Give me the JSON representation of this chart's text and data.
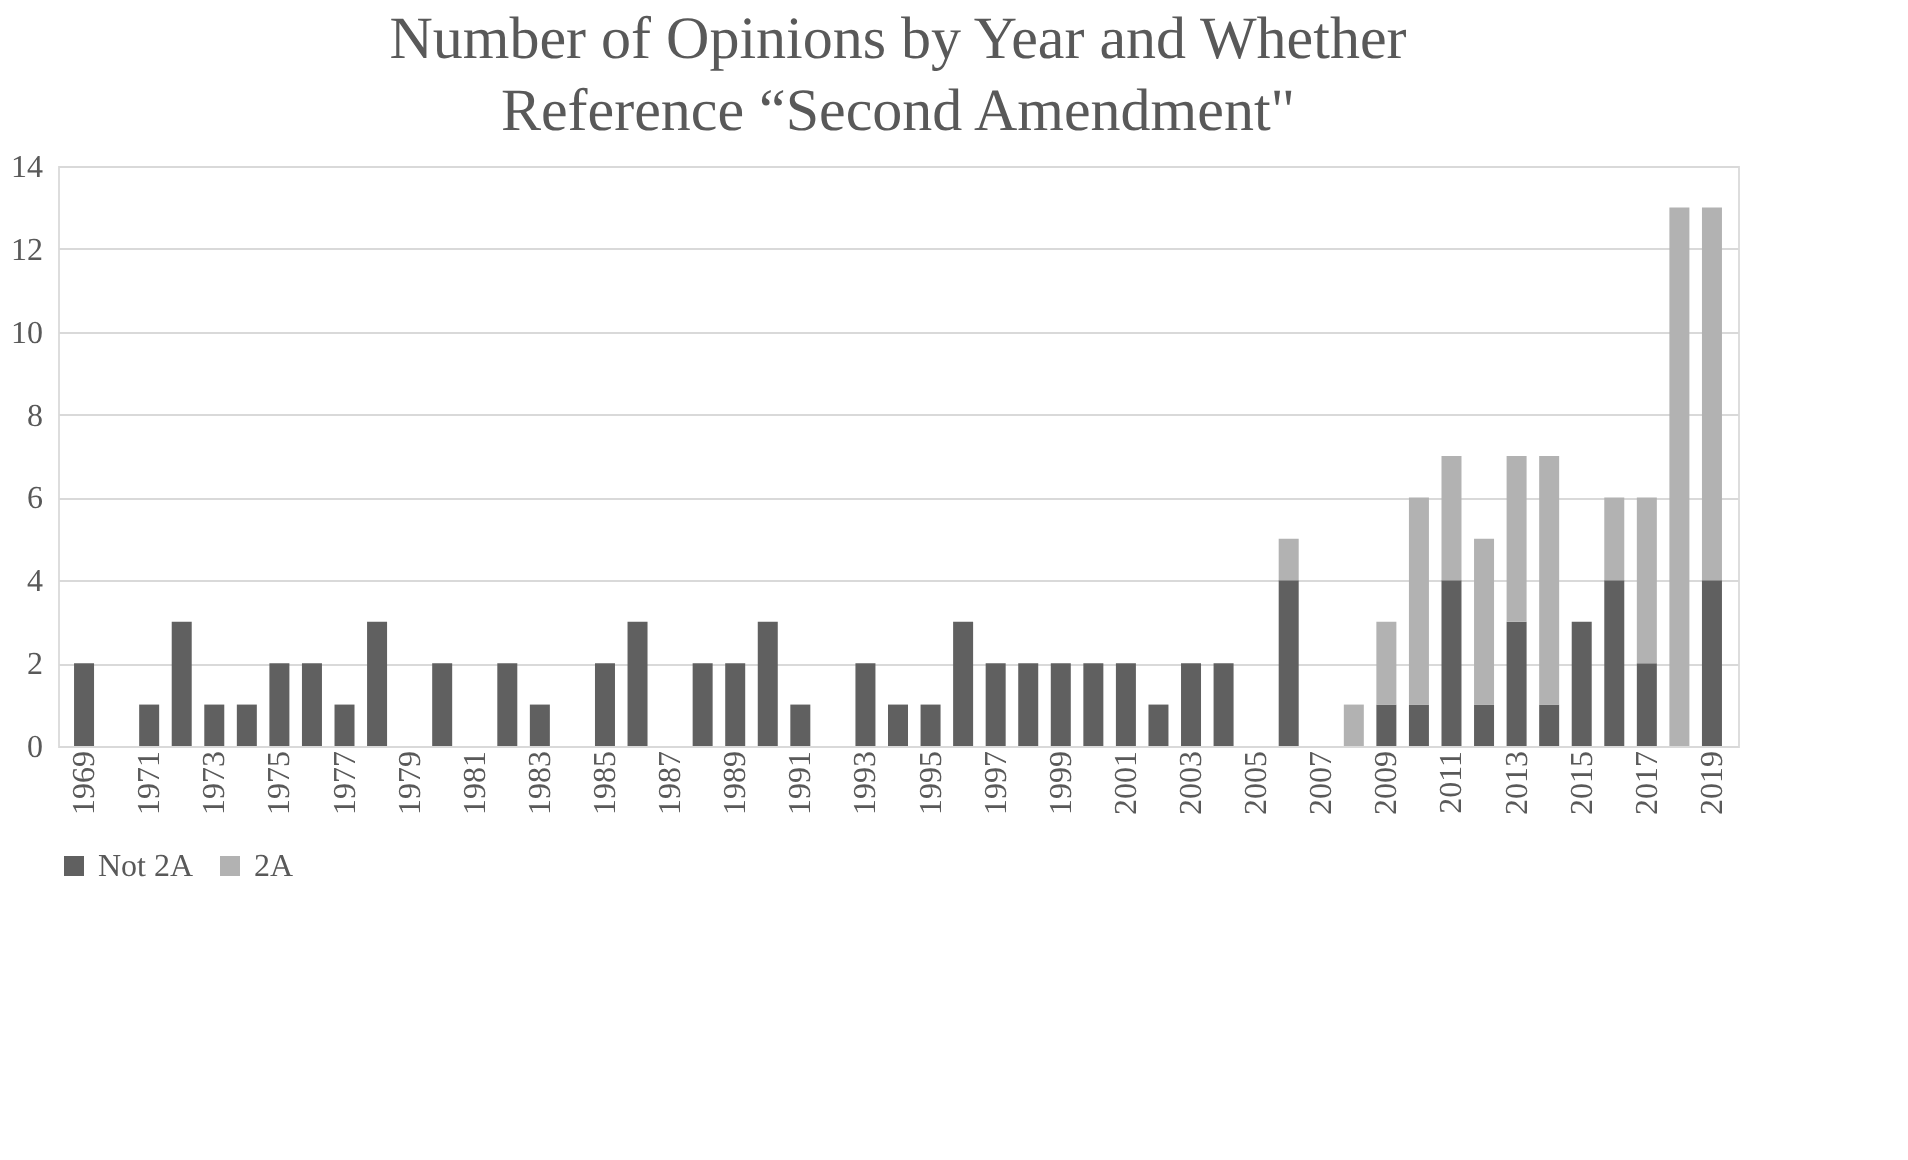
{
  "chart_data": {
    "type": "bar",
    "stacked": true,
    "title": "Number of Opinions by Year and Whether\nReference “Second Amendment\"",
    "categories": [
      "1969",
      null,
      "1971",
      null,
      "1973",
      null,
      "1975",
      null,
      "1977",
      null,
      "1979",
      null,
      "1981",
      null,
      "1983",
      null,
      "1985",
      null,
      "1987",
      null,
      "1989",
      null,
      "1991",
      null,
      "1993",
      null,
      "1995",
      null,
      "1997",
      null,
      "1999",
      null,
      "2001",
      null,
      "2003",
      null,
      "2005",
      null,
      "2007",
      null,
      "2009",
      null,
      "2011",
      null,
      "2013",
      null,
      "2015",
      null,
      "2017",
      null,
      "2019"
    ],
    "series": [
      {
        "name": "Not 2A",
        "color": "#606060",
        "values": [
          2,
          0,
          1,
          3,
          1,
          1,
          2,
          2,
          1,
          3,
          0,
          2,
          0,
          2,
          1,
          0,
          2,
          3,
          0,
          2,
          2,
          3,
          1,
          0,
          2,
          1,
          1,
          3,
          2,
          2,
          2,
          2,
          2,
          1,
          2,
          2,
          0,
          4,
          0,
          0,
          1,
          1,
          4,
          1,
          3,
          1,
          3,
          4,
          2,
          0,
          4
        ]
      },
      {
        "name": "2A",
        "color": "#b2b2b2",
        "values": [
          0,
          0,
          0,
          0,
          0,
          0,
          0,
          0,
          0,
          0,
          0,
          0,
          0,
          0,
          0,
          0,
          0,
          0,
          0,
          0,
          0,
          0,
          0,
          0,
          0,
          0,
          0,
          0,
          0,
          0,
          0,
          0,
          0,
          0,
          0,
          0,
          0,
          1,
          0,
          1,
          2,
          5,
          3,
          4,
          4,
          6,
          0,
          2,
          4,
          13,
          9
        ]
      }
    ],
    "ylim": [
      0,
      14
    ],
    "yticks": [
      0,
      2,
      4,
      6,
      8,
      10,
      12,
      14
    ],
    "grid": "y",
    "legend": "bottom"
  }
}
